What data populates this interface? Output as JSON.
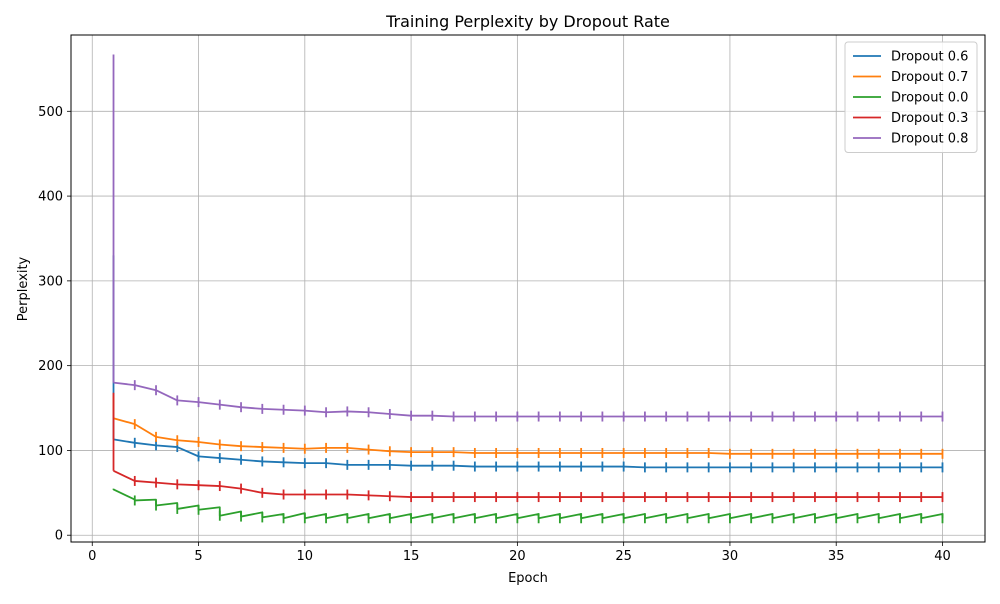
{
  "chart_data": {
    "type": "line",
    "title": "Training Perplexity by Dropout Rate",
    "xlabel": "Epoch",
    "ylabel": "Perplexity",
    "xlim": [
      -1,
      42
    ],
    "ylim": [
      -8,
      590
    ],
    "xticks": [
      0,
      5,
      10,
      15,
      20,
      25,
      30,
      35,
      40
    ],
    "yticks": [
      0,
      100,
      200,
      300,
      400,
      500
    ],
    "grid": true,
    "legend_position": "top-right",
    "series": [
      {
        "name": "Dropout 0.6",
        "color": "#1f77b4",
        "x": [
          1,
          2,
          3,
          4,
          5,
          6,
          7,
          8,
          9,
          10,
          11,
          12,
          13,
          14,
          15,
          16,
          17,
          18,
          19,
          20,
          21,
          22,
          23,
          24,
          25,
          26,
          27,
          28,
          29,
          30,
          31,
          32,
          33,
          34,
          35,
          36,
          37,
          38,
          39,
          40
        ],
        "y": [
          113,
          109,
          106,
          104,
          93,
          91,
          89,
          87,
          86,
          85,
          85,
          83,
          83,
          83,
          82,
          82,
          82,
          81,
          81,
          81,
          81,
          81,
          81,
          81,
          81,
          80,
          80,
          80,
          80,
          80,
          80,
          80,
          80,
          80,
          80,
          80,
          80,
          80,
          80,
          80
        ],
        "spikes": [
          {
            "x": 1,
            "top": 330,
            "bottom": 113
          }
        ]
      },
      {
        "name": "Dropout 0.7",
        "color": "#ff7f0e",
        "x": [
          1,
          2,
          3,
          4,
          5,
          6,
          7,
          8,
          9,
          10,
          11,
          12,
          13,
          14,
          15,
          16,
          17,
          18,
          19,
          20,
          21,
          22,
          23,
          24,
          25,
          26,
          27,
          28,
          29,
          30,
          31,
          32,
          33,
          34,
          35,
          36,
          37,
          38,
          39,
          40
        ],
        "y": [
          138,
          131,
          116,
          112,
          110,
          107,
          105,
          104,
          103,
          102,
          103,
          103,
          101,
          99,
          98,
          98,
          98,
          97,
          97,
          97,
          97,
          97,
          97,
          97,
          97,
          97,
          97,
          97,
          97,
          96,
          96,
          96,
          96,
          96,
          96,
          96,
          96,
          96,
          96,
          96
        ],
        "spikes": [
          {
            "x": 1,
            "top": 165,
            "bottom": 138
          }
        ]
      },
      {
        "name": "Dropout 0.0",
        "color": "#2ca02c",
        "x": [
          1,
          2,
          3,
          4,
          5,
          6,
          7,
          8,
          9,
          10,
          11,
          12,
          13,
          14,
          15,
          16,
          17,
          18,
          19,
          20,
          21,
          22,
          23,
          24,
          25,
          26,
          27,
          28,
          29,
          30,
          31,
          32,
          33,
          34,
          35,
          36,
          37,
          38,
          39,
          40
        ],
        "y": [
          54,
          41,
          35,
          31,
          30,
          23,
          22,
          21,
          20,
          20,
          20,
          20,
          20,
          20,
          20,
          20,
          20,
          20,
          20,
          20,
          20,
          20,
          20,
          20,
          20,
          20,
          20,
          20,
          20,
          20,
          20,
          20,
          20,
          20,
          20,
          20,
          20,
          20,
          20,
          20
        ],
        "peaks": [
          55,
          42,
          42,
          38,
          35,
          33,
          28,
          27,
          25,
          26,
          25,
          25,
          25,
          25,
          25,
          25,
          25,
          25,
          25,
          25,
          25,
          25,
          25,
          25,
          25,
          25,
          25,
          25,
          25,
          25,
          25,
          25,
          25,
          25,
          25,
          25,
          25,
          25,
          25,
          25
        ]
      },
      {
        "name": "Dropout 0.3",
        "color": "#d62728",
        "x": [
          1,
          2,
          3,
          4,
          5,
          6,
          7,
          8,
          9,
          10,
          11,
          12,
          13,
          14,
          15,
          16,
          17,
          18,
          19,
          20,
          21,
          22,
          23,
          24,
          25,
          26,
          27,
          28,
          29,
          30,
          31,
          32,
          33,
          34,
          35,
          36,
          37,
          38,
          39,
          40
        ],
        "y": [
          76,
          64,
          62,
          60,
          59,
          58,
          55,
          50,
          48,
          48,
          48,
          48,
          47,
          46,
          45,
          45,
          45,
          45,
          45,
          45,
          45,
          45,
          45,
          45,
          45,
          45,
          45,
          45,
          45,
          45,
          45,
          45,
          45,
          45,
          45,
          45,
          45,
          45,
          45,
          45
        ],
        "spikes": [
          {
            "x": 1,
            "top": 168,
            "bottom": 76
          }
        ]
      },
      {
        "name": "Dropout 0.8",
        "color": "#9467bd",
        "x": [
          1,
          2,
          3,
          4,
          5,
          6,
          7,
          8,
          9,
          10,
          11,
          12,
          13,
          14,
          15,
          16,
          17,
          18,
          19,
          20,
          21,
          22,
          23,
          24,
          25,
          26,
          27,
          28,
          29,
          30,
          31,
          32,
          33,
          34,
          35,
          36,
          37,
          38,
          39,
          40
        ],
        "y": [
          180,
          177,
          171,
          159,
          157,
          154,
          151,
          149,
          148,
          147,
          145,
          146,
          145,
          143,
          141,
          141,
          140,
          140,
          140,
          140,
          140,
          140,
          140,
          140,
          140,
          140,
          140,
          140,
          140,
          140,
          140,
          140,
          140,
          140,
          140,
          140,
          140,
          140,
          140,
          140
        ],
        "spikes": [
          {
            "x": 1,
            "top": 567,
            "bottom": 180
          }
        ]
      }
    ]
  }
}
